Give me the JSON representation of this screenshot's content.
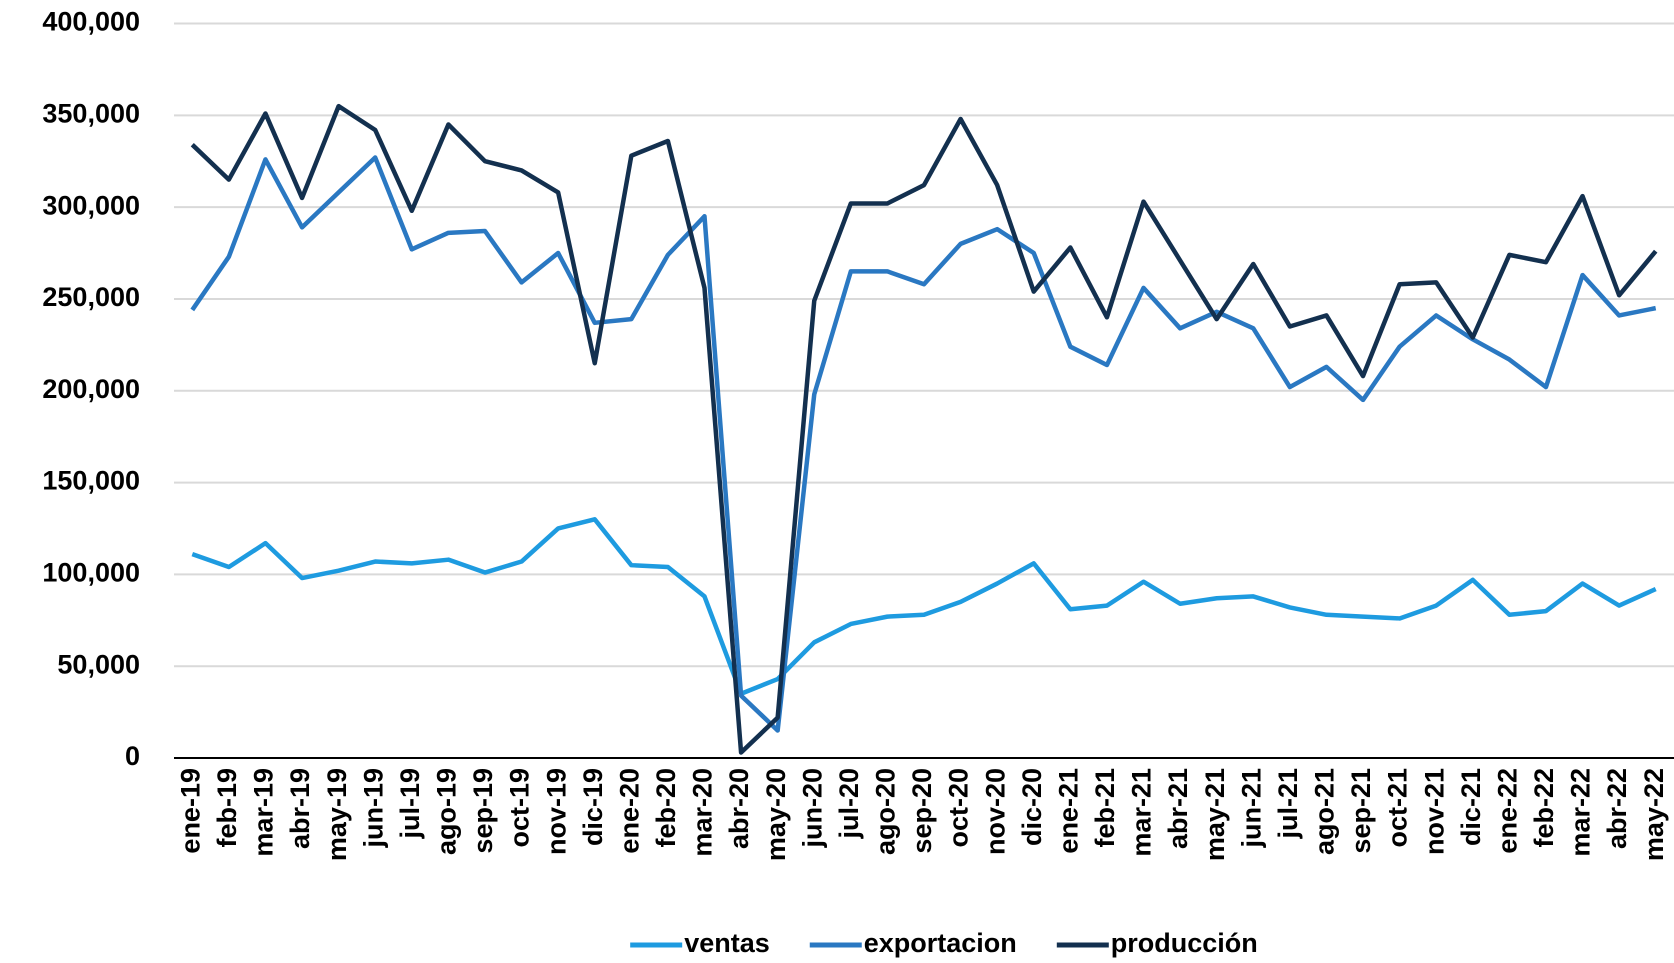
{
  "chart_data": {
    "type": "line",
    "categories": [
      "ene-19",
      "feb-19",
      "mar-19",
      "abr-19",
      "may-19",
      "jun-19",
      "jul-19",
      "ago-19",
      "sep-19",
      "oct-19",
      "nov-19",
      "dic-19",
      "ene-20",
      "feb-20",
      "mar-20",
      "abr-20",
      "may-20",
      "jun-20",
      "jul-20",
      "ago-20",
      "sep-20",
      "oct-20",
      "nov-20",
      "dic-20",
      "ene-21",
      "feb-21",
      "mar-21",
      "abr-21",
      "may-21",
      "jun-21",
      "jul-21",
      "ago-21",
      "sep-21",
      "oct-21",
      "nov-21",
      "dic-21",
      "ene-22",
      "feb-22",
      "mar-22",
      "abr-22",
      "may-22"
    ],
    "series": [
      {
        "name": "ventas",
        "color": "#1e9be0",
        "values": [
          111000,
          104000,
          117000,
          98000,
          102000,
          107000,
          106000,
          108000,
          101000,
          107000,
          125000,
          130000,
          105000,
          104000,
          88000,
          35000,
          43000,
          63000,
          73000,
          77000,
          78000,
          85000,
          95000,
          106000,
          81000,
          83000,
          96000,
          84000,
          87000,
          88000,
          82000,
          78000,
          77000,
          76000,
          83000,
          97000,
          78000,
          80000,
          95000,
          83000,
          92000
        ]
      },
      {
        "name": "exportacion",
        "color": "#2a78c2",
        "values": [
          244000,
          273000,
          326000,
          289000,
          308000,
          327000,
          277000,
          286000,
          287000,
          259000,
          275000,
          237000,
          239000,
          274000,
          295000,
          34000,
          15000,
          198000,
          265000,
          265000,
          258000,
          280000,
          288000,
          275000,
          224000,
          214000,
          256000,
          234000,
          243000,
          234000,
          202000,
          213000,
          195000,
          224000,
          241000,
          228000,
          217000,
          202000,
          263000,
          241000,
          245000
        ]
      },
      {
        "name": "producción",
        "color": "#13304f",
        "values": [
          334000,
          315000,
          351000,
          305000,
          355000,
          342000,
          298000,
          345000,
          325000,
          320000,
          308000,
          215000,
          328000,
          336000,
          256000,
          3000,
          22000,
          249000,
          302000,
          302000,
          312000,
          348000,
          312000,
          254000,
          278000,
          240000,
          303000,
          271000,
          239000,
          269000,
          235000,
          241000,
          208000,
          258000,
          259000,
          229000,
          274000,
          270000,
          306000,
          252000,
          276000
        ]
      }
    ],
    "ylim": [
      0,
      400000
    ],
    "yticks": [
      0,
      {
        "value": 50000,
        "label": "50,000"
      },
      {
        "value": 100000,
        "label": "100,000"
      },
      {
        "value": 150000,
        "label": "150,000"
      },
      {
        "value": 200000,
        "label": "200,000"
      },
      {
        "value": 250000,
        "label": "250,000"
      },
      {
        "value": 300000,
        "label": "300,000"
      },
      {
        "value": 350000,
        "label": "350,000"
      },
      {
        "value": 400000,
        "label": "400,000"
      }
    ],
    "grid": true,
    "legend": "bottom"
  }
}
